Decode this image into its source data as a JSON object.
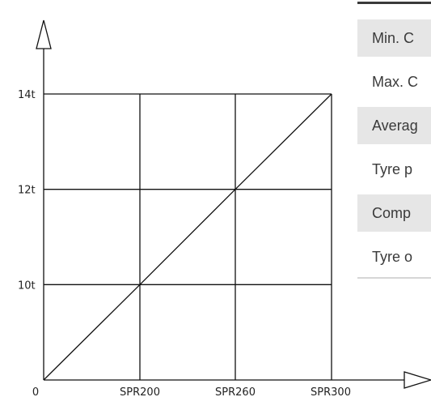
{
  "chart_data": {
    "type": "line",
    "title": "",
    "xlabel": "",
    "ylabel": "",
    "categories": [
      "0",
      "SPR200",
      "SPR260",
      "SPR300"
    ],
    "y_tick_labels": [
      "10t",
      "12t",
      "14t"
    ],
    "series": [
      {
        "values": [
          8,
          10,
          12,
          14
        ]
      }
    ],
    "ylim": [
      8,
      14
    ],
    "grid": true,
    "legend": "none"
  },
  "spec_table": {
    "rows": [
      {
        "label": "Min. C",
        "shaded": true
      },
      {
        "label": "Max. C",
        "shaded": false
      },
      {
        "label": "Averag",
        "shaded": true
      },
      {
        "label": "Tyre p",
        "shaded": false
      },
      {
        "label": "Comp",
        "shaded": true
      },
      {
        "label": "Tyre o",
        "shaded": false
      }
    ]
  }
}
